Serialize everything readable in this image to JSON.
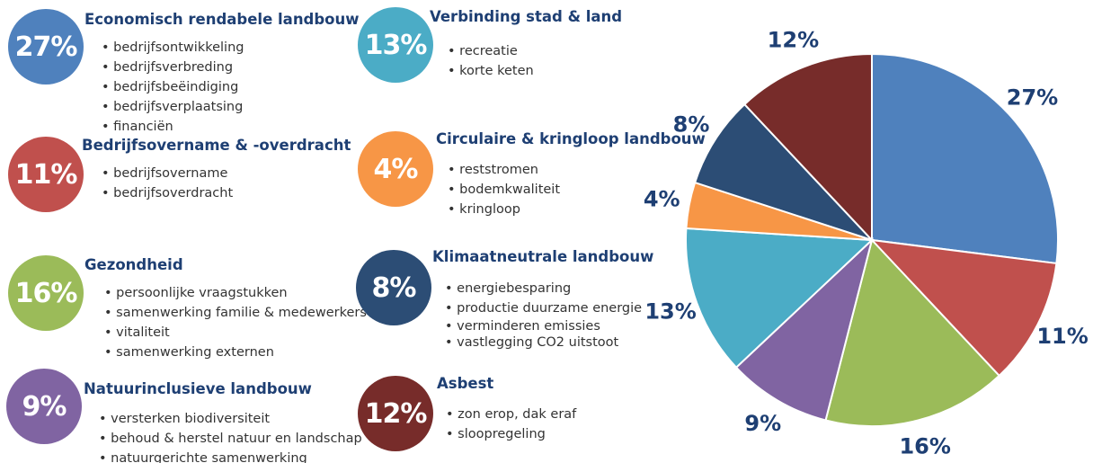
{
  "categories": [
    {
      "pct": "27%",
      "title": "Economisch rendabele landbouw",
      "color": "#4f81bd",
      "items": [
        "bedrijfsontwikkeling",
        "bedrijfsverbreding",
        "bedrijfsbeëindiging",
        "bedrijfsverplaatsing",
        "financiën"
      ]
    },
    {
      "pct": "11%",
      "title": "Bedrijfsovername & -overdracht",
      "color": "#c0504d",
      "items": [
        "bedrijfsovername",
        "bedrijfsoverdracht"
      ]
    },
    {
      "pct": "16%",
      "title": "Gezondheid",
      "color": "#9bbb59",
      "items": [
        "persoonlijke vraagstukken",
        "samenwerking familie & medewerkers",
        "vitaliteit",
        "samenwerking externen"
      ]
    },
    {
      "pct": "9%",
      "title": "Natuurinclusieve landbouw",
      "color": "#8064a2",
      "items": [
        "versterken biodiversiteit",
        "behoud & herstel natuur en landschap",
        "natuurgerichte samenwerking"
      ]
    },
    {
      "pct": "13%",
      "title": "Verbinding stad & land",
      "color": "#4bacc6",
      "items": [
        "recreatie",
        "korte keten"
      ]
    },
    {
      "pct": "4%",
      "title": "Circulaire & kringloop landbouw",
      "color": "#f79646",
      "items": [
        "reststromen",
        "bodemkwaliteit",
        "kringloop"
      ]
    },
    {
      "pct": "8%",
      "title": "Klimaatneutrale landbouw",
      "color": "#2c4d75",
      "items": [
        "energiebesparing",
        "productie duurzame energie",
        "verminderen emissies",
        "vastlegging CO2 uitstoot"
      ]
    },
    {
      "pct": "12%",
      "title": "Asbest",
      "color": "#772c2a",
      "items": [
        "zon erop, dak eraf",
        "sloopregeling"
      ]
    }
  ],
  "chart_data": {
    "type": "pie",
    "categories": [
      "Economisch rendabele landbouw",
      "Bedrijfsovername & -overdracht",
      "Gezondheid",
      "Natuurinclusieve landbouw",
      "Verbinding stad & land",
      "Circulaire & kringloop landbouw",
      "Klimaatneutrale landbouw",
      "Asbest"
    ],
    "values": [
      27,
      11,
      16,
      9,
      13,
      4,
      8,
      12
    ],
    "labels": [
      "27%",
      "11%",
      "16%",
      "9%",
      "13%",
      "4%",
      "8%",
      "12%"
    ],
    "colors": [
      "#4f81bd",
      "#c0504d",
      "#9bbb59",
      "#8064a2",
      "#4bacc6",
      "#f79646",
      "#2c4d75",
      "#772c2a"
    ],
    "title": "",
    "legend": "none",
    "start": "top, clockwise"
  }
}
